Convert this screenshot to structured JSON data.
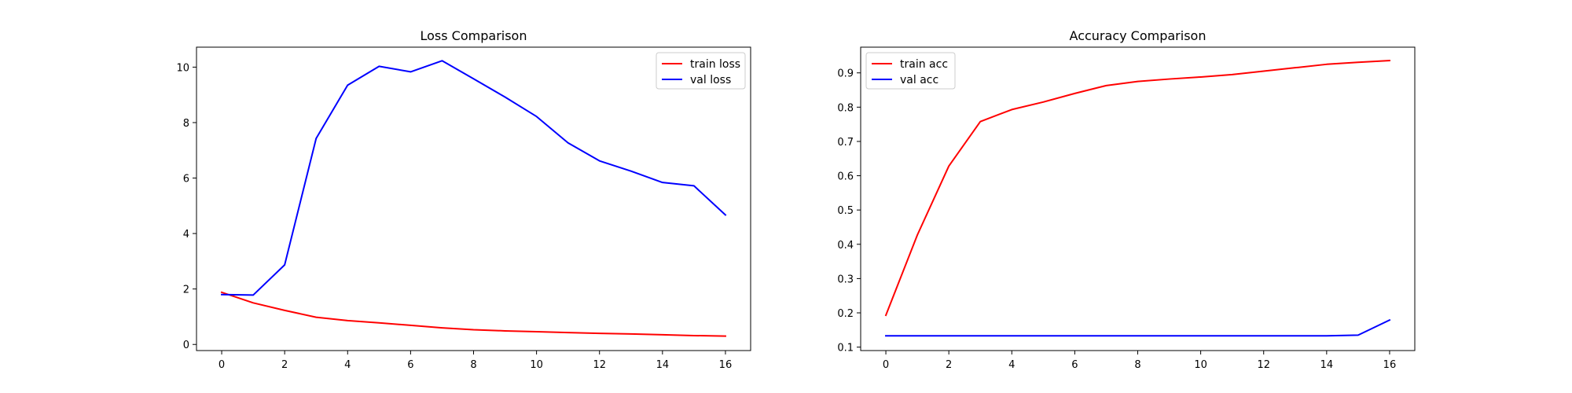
{
  "chart_data": [
    {
      "type": "line",
      "title": "Loss Comparison",
      "xlabel": "",
      "ylabel": "",
      "x": [
        0,
        1,
        2,
        3,
        4,
        5,
        6,
        7,
        8,
        9,
        10,
        11,
        12,
        13,
        14,
        15,
        16
      ],
      "xlim": [
        -0.8,
        16.8
      ],
      "ylim": [
        -0.22,
        10.72
      ],
      "xticks": [
        0,
        2,
        4,
        6,
        8,
        10,
        12,
        14,
        16
      ],
      "yticks": [
        0,
        2,
        4,
        6,
        8,
        10
      ],
      "grid": false,
      "legend": "top-right",
      "series": [
        {
          "name": "train loss",
          "color": "#ff0000",
          "values": [
            1.88,
            1.5,
            1.23,
            0.98,
            0.86,
            0.78,
            0.69,
            0.6,
            0.53,
            0.49,
            0.46,
            0.43,
            0.4,
            0.38,
            0.35,
            0.32,
            0.3
          ]
        },
        {
          "name": "val loss",
          "color": "#0000ff",
          "values": [
            1.8,
            1.78,
            2.87,
            7.43,
            9.35,
            10.03,
            9.83,
            10.23,
            9.58,
            8.92,
            8.22,
            7.27,
            6.62,
            6.25,
            5.84,
            5.72,
            4.67
          ]
        }
      ]
    },
    {
      "type": "line",
      "title": "Accuracy Comparison",
      "xlabel": "",
      "ylabel": "",
      "x": [
        0,
        1,
        2,
        3,
        4,
        5,
        6,
        7,
        8,
        9,
        10,
        11,
        12,
        13,
        14,
        15,
        16
      ],
      "xlim": [
        -0.8,
        16.8
      ],
      "ylim": [
        0.09,
        0.975
      ],
      "xticks": [
        0,
        2,
        4,
        6,
        8,
        10,
        12,
        14,
        16
      ],
      "yticks": [
        0.1,
        0.2,
        0.3,
        0.4,
        0.5,
        0.6,
        0.7,
        0.8,
        0.9
      ],
      "grid": false,
      "legend": "top-left",
      "series": [
        {
          "name": "train acc",
          "color": "#ff0000",
          "values": [
            0.193,
            0.427,
            0.628,
            0.758,
            0.793,
            0.815,
            0.84,
            0.863,
            0.875,
            0.882,
            0.888,
            0.895,
            0.905,
            0.915,
            0.925,
            0.931,
            0.936
          ]
        },
        {
          "name": "val acc",
          "color": "#0000ff",
          "values": [
            0.133,
            0.133,
            0.133,
            0.133,
            0.133,
            0.133,
            0.133,
            0.133,
            0.133,
            0.133,
            0.133,
            0.133,
            0.133,
            0.133,
            0.133,
            0.135,
            0.179
          ]
        }
      ]
    }
  ]
}
